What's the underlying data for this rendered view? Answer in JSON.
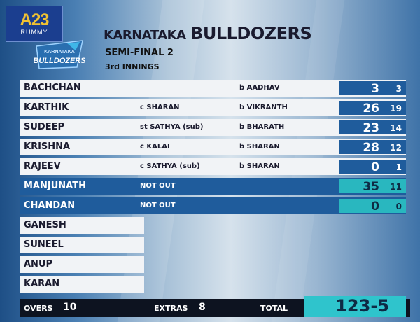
{
  "brand": {
    "logo": "A23",
    "sub": "RUMMY"
  },
  "crest": {
    "line1": "KARNATAKA",
    "line2": "BULLDOZERS"
  },
  "header": {
    "team_prefix": "KARNATAKA",
    "team_name": "BULLDOZERS",
    "match": "SEMI-FINAL 2",
    "innings": "3rd INNINGS"
  },
  "batting": [
    {
      "name": "BACHCHAN",
      "how": "",
      "bowler": "b AADHAV",
      "runs": "3",
      "balls": "3"
    },
    {
      "name": "KARTHIK",
      "how": "c SHARAN",
      "bowler": "b VIKRANTH",
      "runs": "26",
      "balls": "19"
    },
    {
      "name": "SUDEEP",
      "how": "st SATHYA (sub)",
      "bowler": "b BHARATH",
      "runs": "23",
      "balls": "14"
    },
    {
      "name": "KRISHNA",
      "how": "c KALAI",
      "bowler": "b SHARAN",
      "runs": "28",
      "balls": "12"
    },
    {
      "name": "RAJEEV",
      "how": "c SATHYA (sub)",
      "bowler": "b SHARAN",
      "runs": "0",
      "balls": "1"
    },
    {
      "name": "MANJUNATH",
      "how": "NOT OUT",
      "bowler": "",
      "runs": "35",
      "balls": "11"
    },
    {
      "name": "CHANDAN",
      "how": "NOT OUT",
      "bowler": "",
      "runs": "0",
      "balls": "0"
    }
  ],
  "did_not_bat": [
    "GANESH",
    "SUNEEL",
    "ANUP",
    "KARAN"
  ],
  "footer": {
    "overs_label": "OVERS",
    "overs": "10",
    "extras_label": "EXTRAS",
    "extras": "8",
    "total_label": "TOTAL",
    "total": "123-5"
  },
  "colors": {
    "row_blue": "#1f5c9c",
    "score_teal": "#29b7bf",
    "footer_dark": "#0d1320"
  }
}
